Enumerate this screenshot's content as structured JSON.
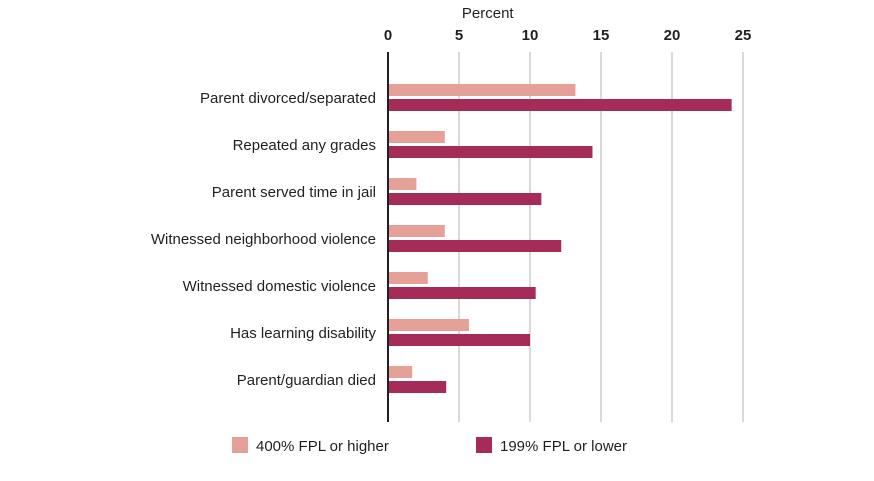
{
  "chart_data": {
    "type": "bar",
    "orientation": "horizontal",
    "title": "",
    "xlabel": "Percent",
    "ylabel": "",
    "xlim": [
      0,
      25
    ],
    "xticks": [
      0,
      5,
      10,
      15,
      20,
      25
    ],
    "grid": true,
    "legend_position": "bottom",
    "categories": [
      "Parent divorced/separated",
      "Repeated any grades",
      "Parent served time in jail",
      "Witnessed neighborhood violence",
      "Witnessed domestic violence",
      "Has learning disability",
      "Parent/guardian died"
    ],
    "series": [
      {
        "name": "400% FPL or higher",
        "color": "#e5a097",
        "values": [
          13.2,
          4.0,
          2.0,
          4.0,
          2.8,
          5.7,
          1.7
        ]
      },
      {
        "name": "199% FPL or lower",
        "color": "#a52c58",
        "values": [
          24.2,
          14.4,
          10.8,
          12.2,
          10.4,
          10.0,
          4.1
        ]
      }
    ]
  }
}
